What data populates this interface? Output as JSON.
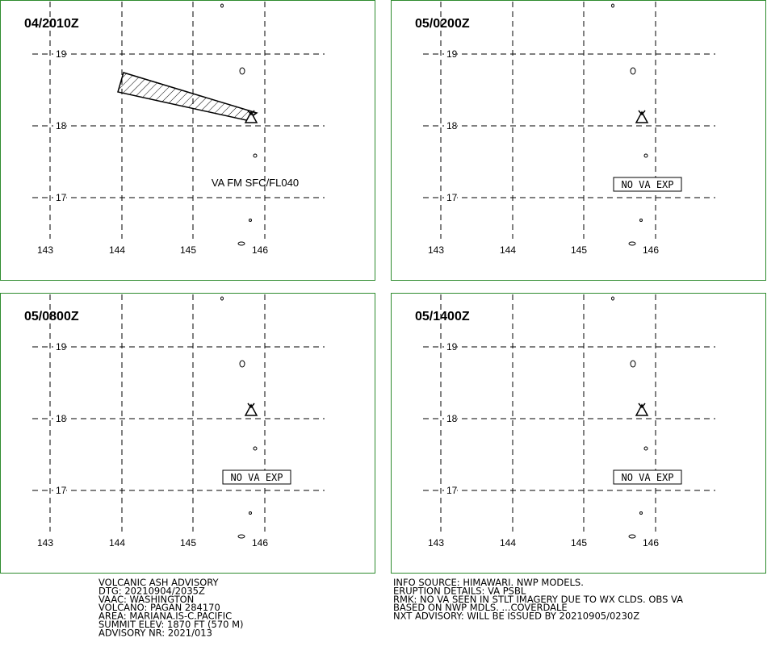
{
  "panels": [
    {
      "title": "04/2010Z",
      "label": "VA FM SFC/FL040"
    },
    {
      "title": "05/0200Z",
      "label": "NO VA EXP"
    },
    {
      "title": "05/0800Z",
      "label": "NO VA EXP"
    },
    {
      "title": "05/1400Z",
      "label": "NO VA EXP"
    }
  ],
  "lat_labels": [
    19,
    18,
    17
  ],
  "lon_labels": [
    143,
    144,
    145,
    146
  ],
  "info_left": [
    "VOLCANIC ASH ADVISORY",
    "DTG: 20210904/2035Z",
    "VAAC: WASHINGTON",
    "VOLCANO: PAGAN 284170",
    "AREA: MARIANA.IS-C.PACIFIC",
    "SUMMIT ELEV: 1870 FT (570 M)",
    "ADVISORY NR: 2021/013"
  ],
  "info_right": [
    "INFO SOURCE: HIMAWARI. NWP MODELS.",
    "ERUPTION DETAILS: VA PSBL",
    "RMK: NO VA SEEN IN STLT IMAGERY DUE TO WX CLDS. OBS VA",
    "BASED ON NWP MDLS. ...COVERDALE",
    "NXT ADVISORY: WILL BE ISSUED BY 20210905/0230Z"
  ]
}
